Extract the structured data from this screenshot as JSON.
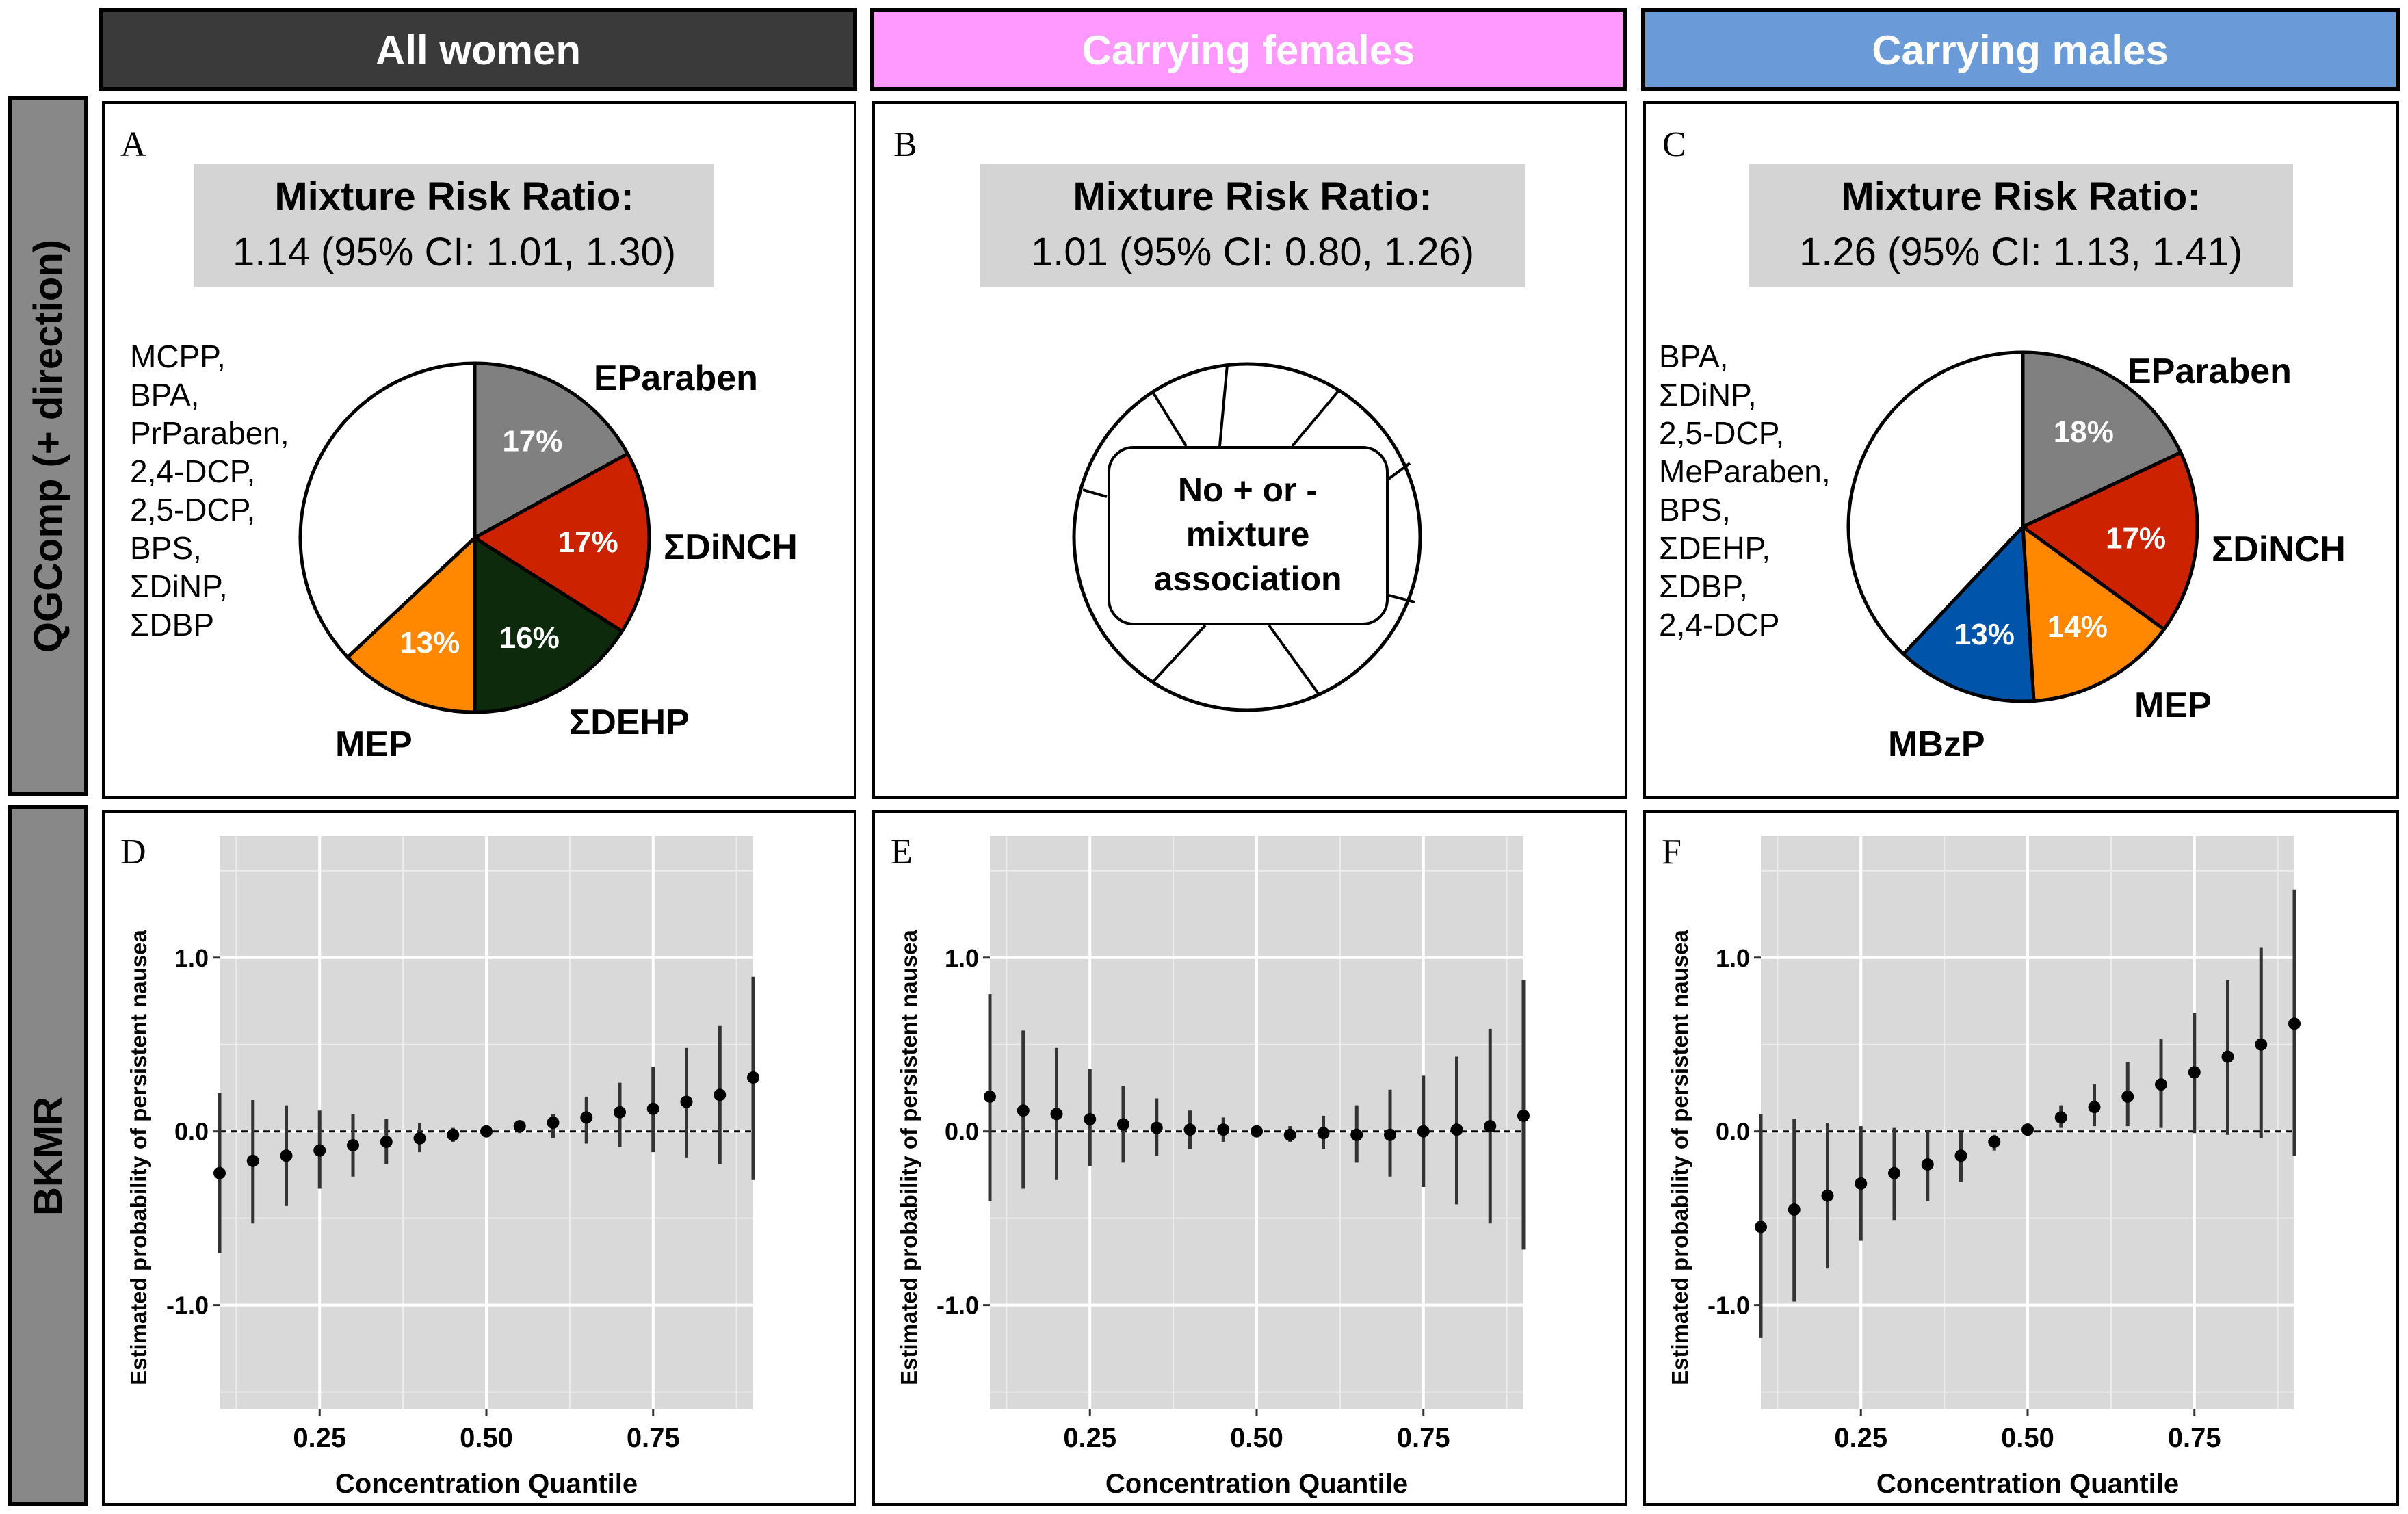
{
  "groups": [
    {
      "label": "All women",
      "bg": "#3a3a3a",
      "fg": "#ffffff"
    },
    {
      "label": "Carrying females",
      "bg": "#ff99ff",
      "fg": "#ffffff"
    },
    {
      "label": "Carrying males",
      "bg": "#6a9bd8",
      "fg": "#ffffff"
    }
  ],
  "rows": [
    {
      "label": "QGComp (+ direction)"
    },
    {
      "label": "BKMR"
    }
  ],
  "qgcomp_panels": [
    {
      "letter": "A",
      "mrr_title": "Mixture Risk Ratio:",
      "mrr_value": "1.14 (95% CI: 1.01, 1.30)",
      "other_components": [
        "MCPP,",
        "BPA,",
        "PrParaben,",
        "2,4-DCP,",
        "2,5-DCP,",
        "BPS,",
        "ΣDiNP,",
        "ΣDBP"
      ],
      "slices": [
        {
          "name": "EParaben",
          "pct": 17,
          "label": "17%",
          "color": "#808080",
          "text_color": "#ffffff"
        },
        {
          "name": "ΣDiNCH",
          "pct": 17,
          "label": "17%",
          "color": "#cc2200",
          "text_color": "#ffffff"
        },
        {
          "name": "ΣDEHP",
          "pct": 16,
          "label": "16%",
          "color": "#0d2a0d",
          "text_color": "#ffffff"
        },
        {
          "name": "MEP",
          "pct": 13,
          "label": "13%",
          "color": "#ff8800",
          "text_color": "#ffffff"
        },
        {
          "name": "",
          "pct": 37,
          "label": "",
          "color": "#ffffff",
          "text_color": "#000000"
        }
      ]
    },
    {
      "letter": "B",
      "mrr_title": "Mixture Risk Ratio:",
      "mrr_value": "1.01 (95% CI: 0.80, 1.26)",
      "no_assoc_lines": [
        "No + or -",
        "mixture",
        "association"
      ]
    },
    {
      "letter": "C",
      "mrr_title": "Mixture Risk Ratio:",
      "mrr_value": "1.26 (95% CI: 1.13, 1.41)",
      "other_components": [
        "BPA,",
        "ΣDiNP,",
        "2,5-DCP,",
        "MeParaben,",
        "BPS,",
        "ΣDEHP,",
        "ΣDBP,",
        "2,4-DCP"
      ],
      "slices": [
        {
          "name": "EParaben",
          "pct": 18,
          "label": "18%",
          "color": "#808080",
          "text_color": "#ffffff"
        },
        {
          "name": "ΣDiNCH",
          "pct": 17,
          "label": "17%",
          "color": "#cc2200",
          "text_color": "#ffffff"
        },
        {
          "name": "MEP",
          "pct": 14,
          "label": "14%",
          "color": "#ff8800",
          "text_color": "#ffffff"
        },
        {
          "name": "MBzP",
          "pct": 13,
          "label": "13%",
          "color": "#0055aa",
          "text_color": "#ffffff"
        },
        {
          "name": "",
          "pct": 38,
          "label": "",
          "color": "#ffffff",
          "text_color": "#000000"
        }
      ]
    }
  ],
  "chart_data": [
    {
      "panel": "D",
      "type": "scatter",
      "xlabel": "Concentration Quantile",
      "ylabel": "Estimated probability of persistent nausea",
      "xlim": [
        0.1,
        0.9
      ],
      "ylim": [
        -1.6,
        1.7
      ],
      "xticks": [
        0.25,
        0.5,
        0.75
      ],
      "xtick_labels": [
        "0.25",
        "0.50",
        "0.75"
      ],
      "yticks": [
        1.0,
        0.0,
        -1.0
      ],
      "ytick_labels": [
        "1.0",
        "0.0",
        "-1.0"
      ],
      "x": [
        0.1,
        0.15,
        0.2,
        0.25,
        0.3,
        0.35,
        0.4,
        0.45,
        0.5,
        0.55,
        0.6,
        0.65,
        0.7,
        0.75,
        0.8,
        0.85,
        0.9
      ],
      "est": [
        -0.24,
        -0.17,
        -0.14,
        -0.11,
        -0.08,
        -0.06,
        -0.04,
        -0.02,
        0.0,
        0.03,
        0.05,
        0.08,
        0.11,
        0.13,
        0.17,
        0.21,
        0.31
      ],
      "lower": [
        -0.7,
        -0.53,
        -0.43,
        -0.33,
        -0.26,
        -0.19,
        -0.12,
        -0.06,
        -0.01,
        -0.01,
        -0.04,
        -0.07,
        -0.09,
        -0.12,
        -0.15,
        -0.19,
        -0.28
      ],
      "upper": [
        0.22,
        0.18,
        0.15,
        0.12,
        0.1,
        0.07,
        0.05,
        0.02,
        0.01,
        0.05,
        0.1,
        0.2,
        0.28,
        0.37,
        0.48,
        0.61,
        0.89
      ]
    },
    {
      "panel": "E",
      "type": "scatter",
      "xlabel": "Concentration Quantile",
      "ylabel": "Estimated probability of persistent nausea",
      "xlim": [
        0.1,
        0.9
      ],
      "ylim": [
        -1.6,
        1.7
      ],
      "xticks": [
        0.25,
        0.5,
        0.75
      ],
      "xtick_labels": [
        "0.25",
        "0.50",
        "0.75"
      ],
      "yticks": [
        1.0,
        0.0,
        -1.0
      ],
      "ytick_labels": [
        "1.0",
        "0.0",
        "-1.0"
      ],
      "x": [
        0.1,
        0.15,
        0.2,
        0.25,
        0.3,
        0.35,
        0.4,
        0.45,
        0.5,
        0.55,
        0.6,
        0.65,
        0.7,
        0.75,
        0.8,
        0.85,
        0.9
      ],
      "est": [
        0.2,
        0.12,
        0.1,
        0.07,
        0.04,
        0.02,
        0.01,
        0.01,
        0.0,
        -0.02,
        -0.01,
        -0.02,
        -0.02,
        0.0,
        0.01,
        0.03,
        0.09
      ],
      "lower": [
        -0.4,
        -0.33,
        -0.28,
        -0.2,
        -0.18,
        -0.14,
        -0.1,
        -0.06,
        -0.01,
        -0.06,
        -0.1,
        -0.18,
        -0.26,
        -0.32,
        -0.42,
        -0.53,
        -0.68
      ],
      "upper": [
        0.79,
        0.58,
        0.48,
        0.36,
        0.26,
        0.19,
        0.12,
        0.08,
        0.01,
        0.03,
        0.09,
        0.15,
        0.24,
        0.32,
        0.43,
        0.59,
        0.87
      ]
    },
    {
      "panel": "F",
      "type": "scatter",
      "xlabel": "Concentration Quantile",
      "ylabel": "Estimated probability of persistent nausea",
      "xlim": [
        0.1,
        0.9
      ],
      "ylim": [
        -1.6,
        1.7
      ],
      "xticks": [
        0.25,
        0.5,
        0.75
      ],
      "xtick_labels": [
        "0.25",
        "0.50",
        "0.75"
      ],
      "yticks": [
        1.0,
        0.0,
        -1.0
      ],
      "ytick_labels": [
        "1.0",
        "0.0",
        "-1.0"
      ],
      "x": [
        0.1,
        0.15,
        0.2,
        0.25,
        0.3,
        0.35,
        0.4,
        0.45,
        0.5,
        0.55,
        0.6,
        0.65,
        0.7,
        0.75,
        0.8,
        0.85,
        0.9
      ],
      "est": [
        -0.55,
        -0.45,
        -0.37,
        -0.3,
        -0.24,
        -0.19,
        -0.14,
        -0.06,
        0.01,
        0.08,
        0.14,
        0.2,
        0.27,
        0.34,
        0.43,
        0.5,
        0.62
      ],
      "lower": [
        -1.19,
        -0.98,
        -0.79,
        -0.63,
        -0.51,
        -0.4,
        -0.29,
        -0.11,
        -0.01,
        0.02,
        0.03,
        0.03,
        0.02,
        -0.01,
        -0.02,
        -0.04,
        -0.14
      ],
      "upper": [
        0.1,
        0.07,
        0.05,
        0.03,
        0.02,
        0.01,
        0.0,
        -0.02,
        0.02,
        0.15,
        0.27,
        0.4,
        0.53,
        0.68,
        0.87,
        1.06,
        1.39
      ]
    }
  ]
}
